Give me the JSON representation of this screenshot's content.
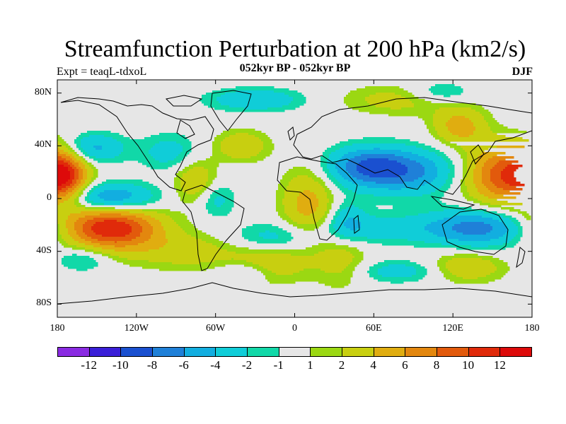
{
  "title": "Streamfunction Perturbation at 200 hPa (km2/s)",
  "subtitle": "052kyr BP - 052kyr BP",
  "left_label": "Expt = teaqL-tdxoL",
  "right_label": "DJF",
  "chart_data": {
    "type": "filled-contour-map",
    "variable": "200 hPa streamfunction perturbation",
    "units": "km2/s",
    "projection": "cylindrical equidistant",
    "lon_range": [
      -180,
      180
    ],
    "lat_range": [
      -90,
      90
    ],
    "x_ticks": [
      {
        "value": -180,
        "label": "180"
      },
      {
        "value": -120,
        "label": "120W"
      },
      {
        "value": -60,
        "label": "60W"
      },
      {
        "value": 0,
        "label": "0"
      },
      {
        "value": 60,
        "label": "60E"
      },
      {
        "value": 120,
        "label": "120E"
      },
      {
        "value": 180,
        "label": "180"
      }
    ],
    "y_ticks": [
      {
        "value": 80,
        "label": "80N"
      },
      {
        "value": 40,
        "label": "40N"
      },
      {
        "value": 0,
        "label": "0"
      },
      {
        "value": -40,
        "label": "40S"
      },
      {
        "value": -80,
        "label": "80S"
      }
    ],
    "contour_levels": [
      -12,
      -10,
      -8,
      -6,
      -4,
      -2,
      -1,
      1,
      2,
      4,
      6,
      8,
      10,
      12
    ],
    "level_labels": [
      "-12",
      "-10",
      "-8",
      "-6",
      "-4",
      "-2",
      "-1",
      "1",
      "2",
      "4",
      "6",
      "8",
      "10",
      "12"
    ],
    "colors": [
      "#8a2be2",
      "#3a1fd8",
      "#1a50d0",
      "#1f80d8",
      "#12aee0",
      "#10cdd8",
      "#11d8a8",
      "#e6e6e6",
      "#9bd812",
      "#c8cf10",
      "#e0ad10",
      "#e3870e",
      "#e25a0c",
      "#e02a0a",
      "#dd0a0a"
    ],
    "field_centers": [
      {
        "lon": -175,
        "lat": 18,
        "amp": 9,
        "sx": 12,
        "sy": 14
      },
      {
        "lon": 160,
        "lat": 18,
        "amp": 10,
        "sx": 22,
        "sy": 16
      },
      {
        "lon": -140,
        "lat": -22,
        "amp": 12,
        "sx": 26,
        "sy": 12
      },
      {
        "lon": 125,
        "lat": 55,
        "amp": 5,
        "sx": 14,
        "sy": 10
      },
      {
        "lon": 10,
        "lat": -5,
        "amp": 5,
        "sx": 14,
        "sy": 20
      },
      {
        "lon": -20,
        "lat": -50,
        "amp": 4,
        "sx": 20,
        "sy": 10
      },
      {
        "lon": 130,
        "lat": -52,
        "amp": 4,
        "sx": 20,
        "sy": 8
      },
      {
        "lon": -75,
        "lat": 13,
        "amp": 4,
        "sx": 12,
        "sy": 12
      },
      {
        "lon": -40,
        "lat": 40,
        "amp": 4,
        "sx": 14,
        "sy": 8
      },
      {
        "lon": 80,
        "lat": 75,
        "amp": 3,
        "sx": 30,
        "sy": 8
      },
      {
        "lon": -80,
        "lat": -40,
        "amp": 3,
        "sx": 30,
        "sy": 10
      },
      {
        "lon": 35,
        "lat": -47,
        "amp": 3,
        "sx": 14,
        "sy": 14
      },
      {
        "lon": -155,
        "lat": 38,
        "amp": -5,
        "sx": 18,
        "sy": 8
      },
      {
        "lon": -140,
        "lat": 0,
        "amp": -7,
        "sx": 24,
        "sy": 8
      },
      {
        "lon": 55,
        "lat": 25,
        "amp": -6,
        "sx": 22,
        "sy": 10
      },
      {
        "lon": 85,
        "lat": 20,
        "amp": -6,
        "sx": 30,
        "sy": 12
      },
      {
        "lon": 140,
        "lat": -22,
        "amp": -7,
        "sx": 28,
        "sy": 10
      },
      {
        "lon": -95,
        "lat": 35,
        "amp": -3,
        "sx": 15,
        "sy": 10
      },
      {
        "lon": -30,
        "lat": 75,
        "amp": -4,
        "sx": 25,
        "sy": 6
      },
      {
        "lon": 110,
        "lat": 80,
        "amp": -3,
        "sx": 18,
        "sy": 6
      },
      {
        "lon": -60,
        "lat": 0,
        "amp": -3,
        "sx": 10,
        "sy": 10
      },
      {
        "lon": -15,
        "lat": -30,
        "amp": -3,
        "sx": 25,
        "sy": 8
      },
      {
        "lon": 60,
        "lat": -23,
        "amp": -3,
        "sx": 35,
        "sy": 8
      },
      {
        "lon": 40,
        "lat": -15,
        "amp": -3,
        "sx": 10,
        "sy": 10
      },
      {
        "lon": -160,
        "lat": -45,
        "amp": -3,
        "sx": 15,
        "sy": 7
      },
      {
        "lon": 80,
        "lat": -55,
        "amp": -3,
        "sx": 25,
        "sy": 6
      },
      {
        "lon": -35,
        "lat": -55,
        "amp": -3,
        "sx": 15,
        "sy": 6
      }
    ]
  }
}
